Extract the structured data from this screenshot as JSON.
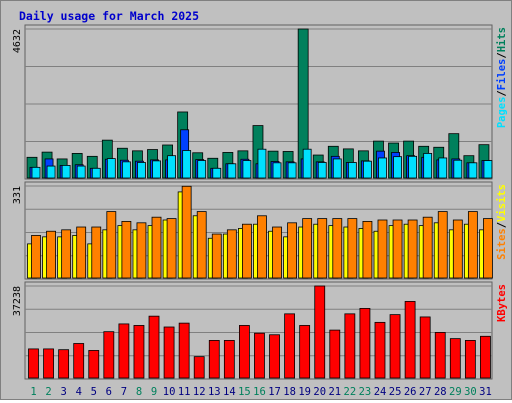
{
  "title": "Daily usage for March 2025",
  "colors": {
    "title": "#0000cc",
    "hits": "#00805c",
    "files": "#0040ff",
    "pages": "#00e0ff",
    "visits": "#ffff00",
    "sites": "#ff8000",
    "kbytes": "#ff0000",
    "weekend_day": "#00805c",
    "weekday_day": "#000080"
  },
  "chart_data": [
    {
      "type": "bar",
      "panel": "hits-files-pages",
      "y_max_label": "4632",
      "ylim": [
        0,
        4632
      ],
      "legend": [
        "Pages",
        "/",
        "Files",
        "/",
        "Hits"
      ],
      "legend_colors": [
        "#00e0ff",
        "#000000",
        "#0040ff",
        "#000000",
        "#00805c"
      ],
      "categories": [
        "1",
        "2",
        "3",
        "4",
        "5",
        "6",
        "7",
        "8",
        "9",
        "10",
        "11",
        "12",
        "13",
        "14",
        "15",
        "16",
        "17",
        "18",
        "19",
        "20",
        "21",
        "22",
        "23",
        "24",
        "25",
        "26",
        "27",
        "28",
        "29",
        "30",
        "31"
      ],
      "series": [
        {
          "name": "Hits",
          "values": [
            670,
            830,
            620,
            790,
            700,
            1200,
            950,
            870,
            910,
            1050,
            2070,
            810,
            640,
            820,
            870,
            1650,
            860,
            850,
            4632,
            740,
            1010,
            930,
            870,
            1170,
            1110,
            1170,
            1010,
            980,
            1400,
            720,
            1060
          ]
        },
        {
          "name": "Files",
          "values": [
            360,
            620,
            420,
            440,
            330,
            610,
            580,
            550,
            590,
            590,
            1520,
            600,
            330,
            470,
            610,
            470,
            540,
            530,
            620,
            530,
            700,
            510,
            560,
            860,
            820,
            720,
            670,
            590,
            620,
            500,
            570
          ]
        },
        {
          "name": "Pages",
          "values": [
            360,
            400,
            420,
            400,
            330,
            630,
            530,
            510,
            560,
            720,
            880,
            570,
            330,
            470,
            570,
            920,
            500,
            500,
            920,
            510,
            620,
            510,
            550,
            650,
            690,
            700,
            790,
            650,
            580,
            500,
            570
          ]
        }
      ]
    },
    {
      "type": "bar",
      "panel": "visits-sites",
      "y_max_label": "331",
      "ylim": [
        0,
        331
      ],
      "legend": [
        "Sites",
        "/",
        "Visits"
      ],
      "legend_colors": [
        "#ff8000",
        "#000000",
        "#ffff00"
      ],
      "categories": [
        "1",
        "2",
        "3",
        "4",
        "5",
        "6",
        "7",
        "8",
        "9",
        "10",
        "11",
        "12",
        "13",
        "14",
        "15",
        "16",
        "17",
        "18",
        "19",
        "20",
        "21",
        "22",
        "23",
        "24",
        "25",
        "26",
        "27",
        "28",
        "29",
        "30",
        "31"
      ],
      "series": [
        {
          "name": "Visits",
          "values": [
            125,
            150,
            150,
            155,
            125,
            175,
            190,
            175,
            190,
            210,
            310,
            225,
            145,
            160,
            180,
            195,
            170,
            150,
            185,
            195,
            190,
            185,
            180,
            170,
            190,
            195,
            190,
            200,
            175,
            195,
            175
          ]
        },
        {
          "name": "Sites",
          "values": [
            155,
            170,
            175,
            185,
            185,
            240,
            205,
            200,
            220,
            215,
            330,
            240,
            160,
            175,
            195,
            225,
            185,
            200,
            215,
            215,
            215,
            215,
            205,
            210,
            210,
            210,
            220,
            240,
            210,
            240,
            215
          ]
        }
      ]
    },
    {
      "type": "bar",
      "panel": "kbytes",
      "y_max_label": "37238",
      "ylim": [
        0,
        37238
      ],
      "legend": [
        "KBytes"
      ],
      "legend_colors": [
        "#ff0000"
      ],
      "categories": [
        "1",
        "2",
        "3",
        "4",
        "5",
        "6",
        "7",
        "8",
        "9",
        "10",
        "11",
        "12",
        "13",
        "14",
        "15",
        "16",
        "17",
        "18",
        "19",
        "20",
        "21",
        "22",
        "23",
        "24",
        "25",
        "26",
        "27",
        "28",
        "29",
        "30",
        "31"
      ],
      "series": [
        {
          "name": "KBytes",
          "values": [
            12050,
            12050,
            11740,
            14220,
            11430,
            18950,
            22060,
            21440,
            25160,
            20820,
            22370,
            8950,
            15450,
            15450,
            21440,
            18340,
            17720,
            26090,
            21440,
            37238,
            19580,
            26090,
            28260,
            22680,
            25780,
            31060,
            24850,
            18650,
            16170,
            15450,
            17100
          ]
        }
      ]
    }
  ]
}
